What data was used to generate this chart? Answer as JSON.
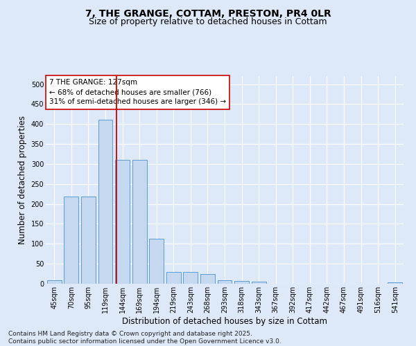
{
  "title": "7, THE GRANGE, COTTAM, PRESTON, PR4 0LR",
  "subtitle": "Size of property relative to detached houses in Cottam",
  "xlabel": "Distribution of detached houses by size in Cottam",
  "ylabel": "Number of detached properties",
  "categories": [
    "45sqm",
    "70sqm",
    "95sqm",
    "119sqm",
    "144sqm",
    "169sqm",
    "194sqm",
    "219sqm",
    "243sqm",
    "268sqm",
    "293sqm",
    "318sqm",
    "343sqm",
    "367sqm",
    "392sqm",
    "417sqm",
    "442sqm",
    "467sqm",
    "491sqm",
    "516sqm",
    "541sqm"
  ],
  "values": [
    9,
    219,
    219,
    411,
    311,
    311,
    113,
    30,
    29,
    25,
    8,
    7,
    5,
    0,
    0,
    0,
    0,
    0,
    0,
    0,
    4
  ],
  "bar_color": "#c5d8f0",
  "bar_edge_color": "#5b9bd5",
  "vline_x": 3.64,
  "annotation_text": "7 THE GRANGE: 127sqm\n← 68% of detached houses are smaller (766)\n31% of semi-detached houses are larger (346) →",
  "annotation_box_color": "#ffffff",
  "annotation_box_edge_color": "#cc0000",
  "vline_color": "#cc0000",
  "ylim": [
    0,
    520
  ],
  "yticks": [
    0,
    50,
    100,
    150,
    200,
    250,
    300,
    350,
    400,
    450,
    500
  ],
  "background_color": "#dde8f8",
  "plot_bg_color": "#dde8f8",
  "grid_color": "#ffffff",
  "footer_text": "Contains HM Land Registry data © Crown copyright and database right 2025.\nContains public sector information licensed under the Open Government Licence v3.0.",
  "title_fontsize": 10,
  "subtitle_fontsize": 9,
  "xlabel_fontsize": 8.5,
  "ylabel_fontsize": 8.5,
  "tick_fontsize": 7,
  "annotation_fontsize": 7.5,
  "footer_fontsize": 6.5
}
